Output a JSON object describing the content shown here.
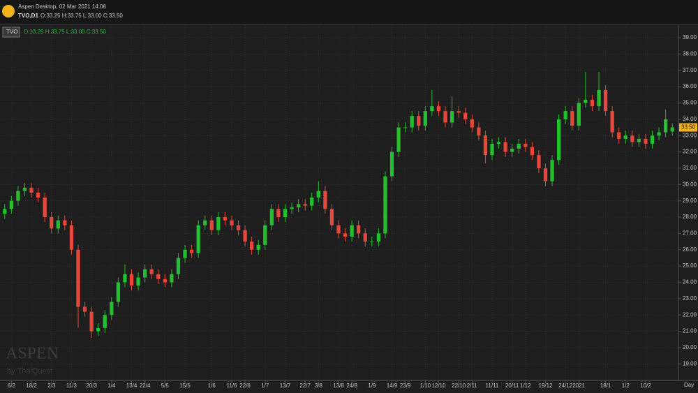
{
  "header": {
    "title": "Aspen Desktop, 02 Mar 2021 14:08",
    "symbol": "TVO,D1",
    "ohlc": "O:33.25 H:33.75 L:33.00 C:33.50"
  },
  "chart_data": {
    "type": "candlestick",
    "legend_symbol": "TVO",
    "legend_ohlc": "O:33.25 H:33.75 L:33.00 C:33.50",
    "watermark": "ASPEN",
    "watermark_sub": "by ThaiQuest",
    "x_unit": "Day",
    "last_label": "33.50",
    "up_color": "#22c02e",
    "down_color": "#e5483a",
    "grid": true,
    "open": [
      28.2,
      28.5,
      29,
      29.6,
      29.8,
      29.5,
      29.2,
      28,
      27.3,
      27.8,
      27.5,
      26,
      22.5,
      22.2,
      21,
      21.2,
      22,
      22.8,
      24,
      24.5,
      23.8,
      24.3,
      24.8,
      24.5,
      24.2,
      24,
      24.5,
      25.5,
      26,
      25.8,
      27.5,
      27.8,
      27.2,
      28,
      27.8,
      27.5,
      27.2,
      26.5,
      26,
      26.3,
      27.5,
      28.5,
      28,
      28.5,
      28.6,
      28.8,
      28.7,
      29.2,
      29.6,
      28.5,
      27.5,
      27,
      26.8,
      27.5,
      27,
      26.5,
      26.5,
      27,
      30.5,
      32,
      33.5,
      33.5,
      34.2,
      33.6,
      34.5,
      34.8,
      34.5,
      33.8,
      34.5,
      34.4,
      34,
      33.5,
      33,
      31.8,
      32.5,
      32.6,
      32,
      32.2,
      32.5,
      32.3,
      31.8,
      31,
      30.2,
      31.5,
      34,
      34.5,
      33.6,
      35,
      35.2,
      34.8,
      35.8,
      34.5,
      33.2,
      32.8,
      33,
      32.6,
      32.8,
      32.5,
      33,
      33.2,
      33.25
    ],
    "high": [
      28.8,
      29.3,
      29.9,
      30.1,
      30.1,
      29.8,
      29.5,
      28.3,
      28.1,
      28.1,
      27.8,
      26.3,
      22.8,
      22.5,
      21.5,
      22.3,
      23.1,
      24.3,
      25.1,
      24.8,
      24.6,
      25.1,
      25.1,
      24.8,
      24.5,
      24.8,
      25.8,
      26.3,
      26.3,
      27.8,
      28.1,
      28.1,
      28.3,
      28.3,
      28.1,
      27.8,
      27.5,
      26.8,
      26.6,
      27.8,
      28.8,
      28.8,
      28.8,
      28.9,
      29.1,
      29.1,
      29.5,
      30.2,
      29.9,
      28.8,
      27.8,
      27.3,
      27.8,
      27.8,
      27.3,
      26.8,
      27.3,
      30.8,
      32.3,
      33.8,
      33.8,
      34.5,
      34.5,
      34.8,
      35.8,
      35.1,
      34.8,
      35.4,
      34.8,
      34.7,
      34.3,
      33.8,
      33.3,
      32.8,
      32.9,
      32.9,
      32.5,
      32.8,
      32.8,
      32.6,
      32.1,
      31.3,
      31.8,
      34.3,
      34.8,
      34.8,
      35.3,
      36.9,
      35.5,
      36.9,
      36.1,
      34.8,
      33.5,
      33.3,
      33.3,
      33.1,
      33.1,
      33.3,
      33.5,
      34.6,
      33.75
    ],
    "low": [
      27.9,
      28.2,
      28.7,
      29.3,
      29.2,
      28.9,
      27.7,
      27,
      27,
      27.2,
      25.7,
      21.2,
      21.9,
      20.6,
      20.7,
      20.9,
      21.7,
      22.5,
      23.7,
      23.5,
      23.5,
      24,
      24.2,
      23.9,
      23.7,
      23.7,
      24.2,
      25.2,
      25.5,
      25.5,
      27.2,
      26.9,
      26.9,
      27.5,
      27.2,
      26.9,
      26.2,
      25.7,
      25.7,
      26,
      27.2,
      27.7,
      27.7,
      28.2,
      28.3,
      28.4,
      28.4,
      28.9,
      28.2,
      27.2,
      26.7,
      26.5,
      26.5,
      26.7,
      26.2,
      26.2,
      26.2,
      26.7,
      30.2,
      31.7,
      33.2,
      33.2,
      33.3,
      33.3,
      34.2,
      34.2,
      33.5,
      33.5,
      34.1,
      33.7,
      33.2,
      32.7,
      31.3,
      31.5,
      32.2,
      31.7,
      31.7,
      31.9,
      32,
      31.5,
      30.7,
      29.9,
      29.9,
      31.2,
      33.7,
      33.3,
      33.3,
      34.7,
      34.5,
      34.5,
      34.2,
      32.9,
      32.5,
      32.5,
      32.3,
      32.3,
      32.2,
      32.2,
      32.7,
      32.9,
      33
    ],
    "close": [
      28.5,
      29,
      29.6,
      29.8,
      29.5,
      29.2,
      28,
      27.3,
      27.8,
      27.5,
      26,
      22.5,
      22.2,
      21,
      21.2,
      22,
      22.8,
      24,
      24.5,
      23.8,
      24.3,
      24.8,
      24.5,
      24.2,
      24,
      24.5,
      25.5,
      26,
      25.8,
      27.5,
      27.8,
      27.2,
      28,
      27.8,
      27.5,
      27.2,
      26.5,
      26,
      26.3,
      27.5,
      28.5,
      28,
      28.5,
      28.6,
      28.8,
      28.7,
      29.2,
      29.6,
      28.5,
      27.5,
      27,
      26.8,
      27.5,
      27,
      26.5,
      26.5,
      27,
      30.5,
      32,
      33.5,
      33.5,
      34.2,
      33.6,
      34.5,
      34.8,
      34.5,
      33.8,
      34.5,
      34.4,
      34,
      33.5,
      33,
      31.8,
      32.5,
      32.6,
      32,
      32.2,
      32.5,
      32.3,
      31.8,
      31,
      30.2,
      31.5,
      34,
      34.5,
      33.6,
      35,
      35.2,
      34.8,
      35.8,
      34.5,
      33.2,
      32.8,
      33,
      32.6,
      32.8,
      32.5,
      33,
      33.2,
      34,
      33.5
    ],
    "xlim": [
      -0.5,
      100.5
    ],
    "xticks": [
      {
        "value": 1,
        "label": "6/2"
      },
      {
        "value": 4,
        "label": "18/2"
      },
      {
        "value": 7,
        "label": "2/3"
      },
      {
        "value": 10,
        "label": "11/3"
      },
      {
        "value": 13,
        "label": "20/3"
      },
      {
        "value": 16,
        "label": "1/4"
      },
      {
        "value": 19,
        "label": "13/4"
      },
      {
        "value": 21,
        "label": "22/4"
      },
      {
        "value": 24,
        "label": "5/5"
      },
      {
        "value": 27,
        "label": "15/5"
      },
      {
        "value": 31,
        "label": "1/6"
      },
      {
        "value": 34,
        "label": "11/6"
      },
      {
        "value": 36,
        "label": "22/6"
      },
      {
        "value": 39,
        "label": "1/7"
      },
      {
        "value": 42,
        "label": "13/7"
      },
      {
        "value": 45,
        "label": "22/7"
      },
      {
        "value": 47,
        "label": "3/8"
      },
      {
        "value": 50,
        "label": "13/8"
      },
      {
        "value": 52,
        "label": "24/8"
      },
      {
        "value": 55,
        "label": "1/9"
      },
      {
        "value": 58,
        "label": "14/9"
      },
      {
        "value": 60,
        "label": "23/9"
      },
      {
        "value": 63,
        "label": "1/10"
      },
      {
        "value": 65,
        "label": "12/10"
      },
      {
        "value": 68,
        "label": "22/10"
      },
      {
        "value": 70,
        "label": "2/11"
      },
      {
        "value": 73,
        "label": "11/11"
      },
      {
        "value": 76,
        "label": "20/11"
      },
      {
        "value": 78,
        "label": "1/12"
      },
      {
        "value": 81,
        "label": "19/12"
      },
      {
        "value": 84,
        "label": "24/12"
      },
      {
        "value": 86,
        "label": "2021"
      },
      {
        "value": 90,
        "label": "18/1"
      },
      {
        "value": 93,
        "label": "1/2"
      },
      {
        "value": 96,
        "label": "10/2"
      }
    ],
    "ylim": [
      18.2,
      39.6
    ],
    "yticks": [
      {
        "value": 19,
        "label": "19.00"
      },
      {
        "value": 20,
        "label": "20.00"
      },
      {
        "value": 21,
        "label": "21.00"
      },
      {
        "value": 22,
        "label": "22.00"
      },
      {
        "value": 23,
        "label": "23.00"
      },
      {
        "value": 24,
        "label": "24.00"
      },
      {
        "value": 25,
        "label": "25.00"
      },
      {
        "value": 26,
        "label": "26.00"
      },
      {
        "value": 27,
        "label": "27.00"
      },
      {
        "value": 28,
        "label": "28.00"
      },
      {
        "value": 29,
        "label": "29.00"
      },
      {
        "value": 30,
        "label": "30.00"
      },
      {
        "value": 31,
        "label": "31.00"
      },
      {
        "value": 32,
        "label": "32.00"
      },
      {
        "value": 33,
        "label": "33.00"
      },
      {
        "value": 34,
        "label": "34.00"
      },
      {
        "value": 35,
        "label": "35.00"
      },
      {
        "value": 36,
        "label": "36.00"
      },
      {
        "value": 37,
        "label": "37.00"
      },
      {
        "value": 38,
        "label": "38.00"
      },
      {
        "value": 39,
        "label": "39.00"
      }
    ]
  }
}
